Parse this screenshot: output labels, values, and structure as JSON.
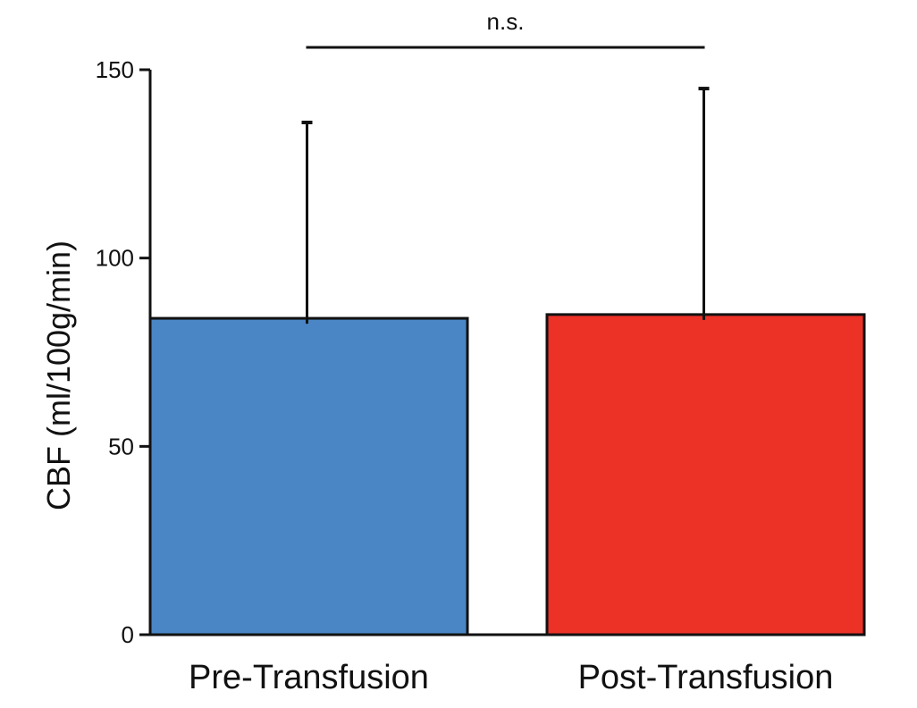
{
  "chart_data": {
    "type": "bar",
    "categories": [
      "Pre-Transfusion",
      "Post-Transfusion"
    ],
    "values": [
      84,
      85
    ],
    "error_upper": [
      136,
      145
    ],
    "ylabel": "CBF (ml/100g/min)",
    "xlabel": "",
    "ylim": [
      0,
      150
    ],
    "yticks": [
      0,
      50,
      100,
      150
    ],
    "bar_colors": [
      "#4A86C5",
      "#EC3127"
    ],
    "significance": {
      "label": "n.s.",
      "between": [
        0,
        1
      ]
    },
    "grid": false
  }
}
